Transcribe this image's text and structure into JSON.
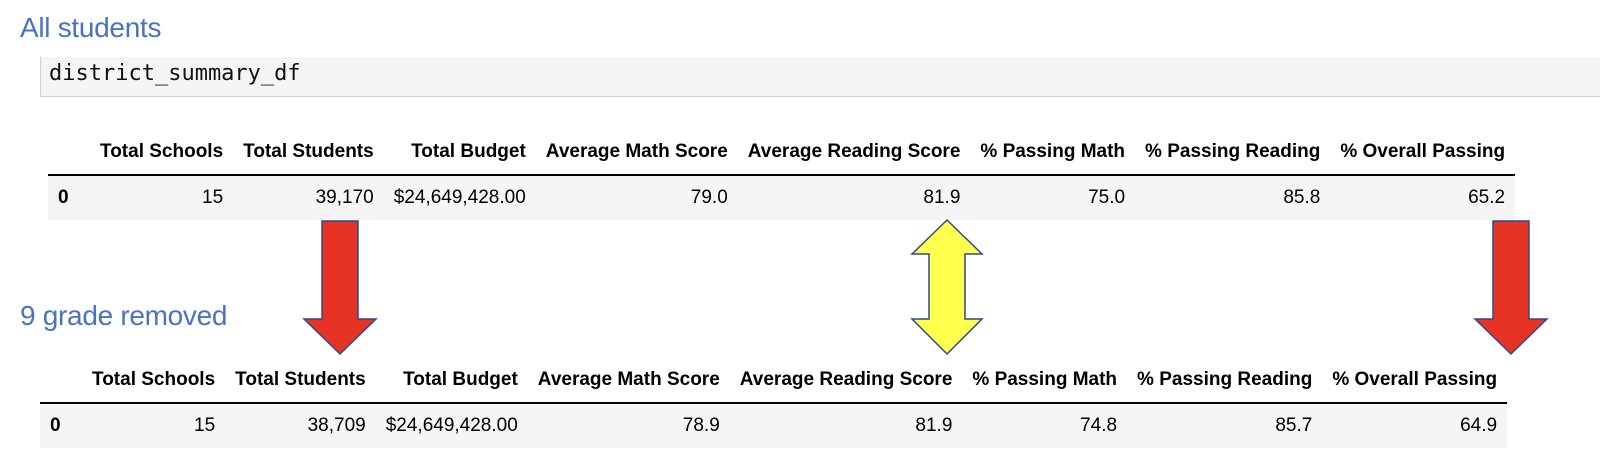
{
  "sections": [
    {
      "title": "All students",
      "code": "district_summary_df",
      "table": {
        "columns": [
          "",
          "Total Schools",
          "Total Students",
          "Total Budget",
          "Average Math Score",
          "Average Reading Score",
          "% Passing Math",
          "% Passing Reading",
          "% Overall Passing"
        ],
        "rows": [
          [
            "0",
            "15",
            "39,170",
            "$24,649,428.00",
            "79.0",
            "81.9",
            "75.0",
            "85.8",
            "65.2"
          ]
        ]
      }
    },
    {
      "title": "9 grade removed",
      "table": {
        "columns": [
          "",
          "Total Schools",
          "Total Students",
          "Total Budget",
          "Average Math Score",
          "Average Reading Score",
          "% Passing Math",
          "% Passing Reading",
          "% Overall Passing"
        ],
        "rows": [
          [
            "0",
            "15",
            "38,709",
            "$24,649,428.00",
            "78.9",
            "81.9",
            "74.8",
            "85.7",
            "64.9"
          ]
        ]
      }
    }
  ],
  "annotations": {
    "down_arrow_color": "#e63323",
    "double_arrow_color": "#ffff4d",
    "arrow_outline_color": "#2f4a8a",
    "title_color": "#4a72c2"
  }
}
